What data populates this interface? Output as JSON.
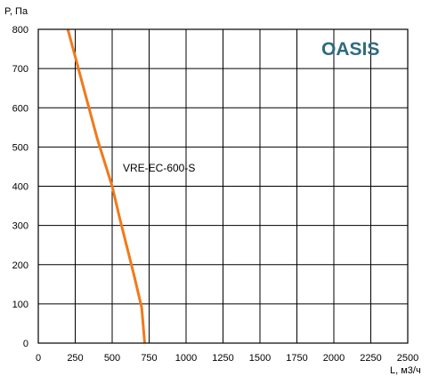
{
  "brand": {
    "text": "OASIS",
    "color": "#2e6b80"
  },
  "chart_data": {
    "type": "line",
    "xlabel": "L, м3/ч",
    "ylabel": "P, Па",
    "xlim": [
      0,
      2500
    ],
    "ylim": [
      0,
      800
    ],
    "xticks": [
      0,
      250,
      500,
      750,
      1000,
      1250,
      1500,
      1750,
      2000,
      2250,
      2500
    ],
    "yticks": [
      0,
      100,
      200,
      300,
      400,
      500,
      600,
      700,
      800
    ],
    "grid": true,
    "series": [
      {
        "name": "VRE-EC-600-S",
        "color": "#f07a1a",
        "x": [
          200,
          250,
          300,
          350,
          400,
          450,
          500,
          550,
          600,
          650,
          700,
          720
        ],
        "y": [
          800,
          730,
          660,
          590,
          520,
          460,
          400,
          320,
          245,
          170,
          90,
          0
        ]
      }
    ]
  }
}
